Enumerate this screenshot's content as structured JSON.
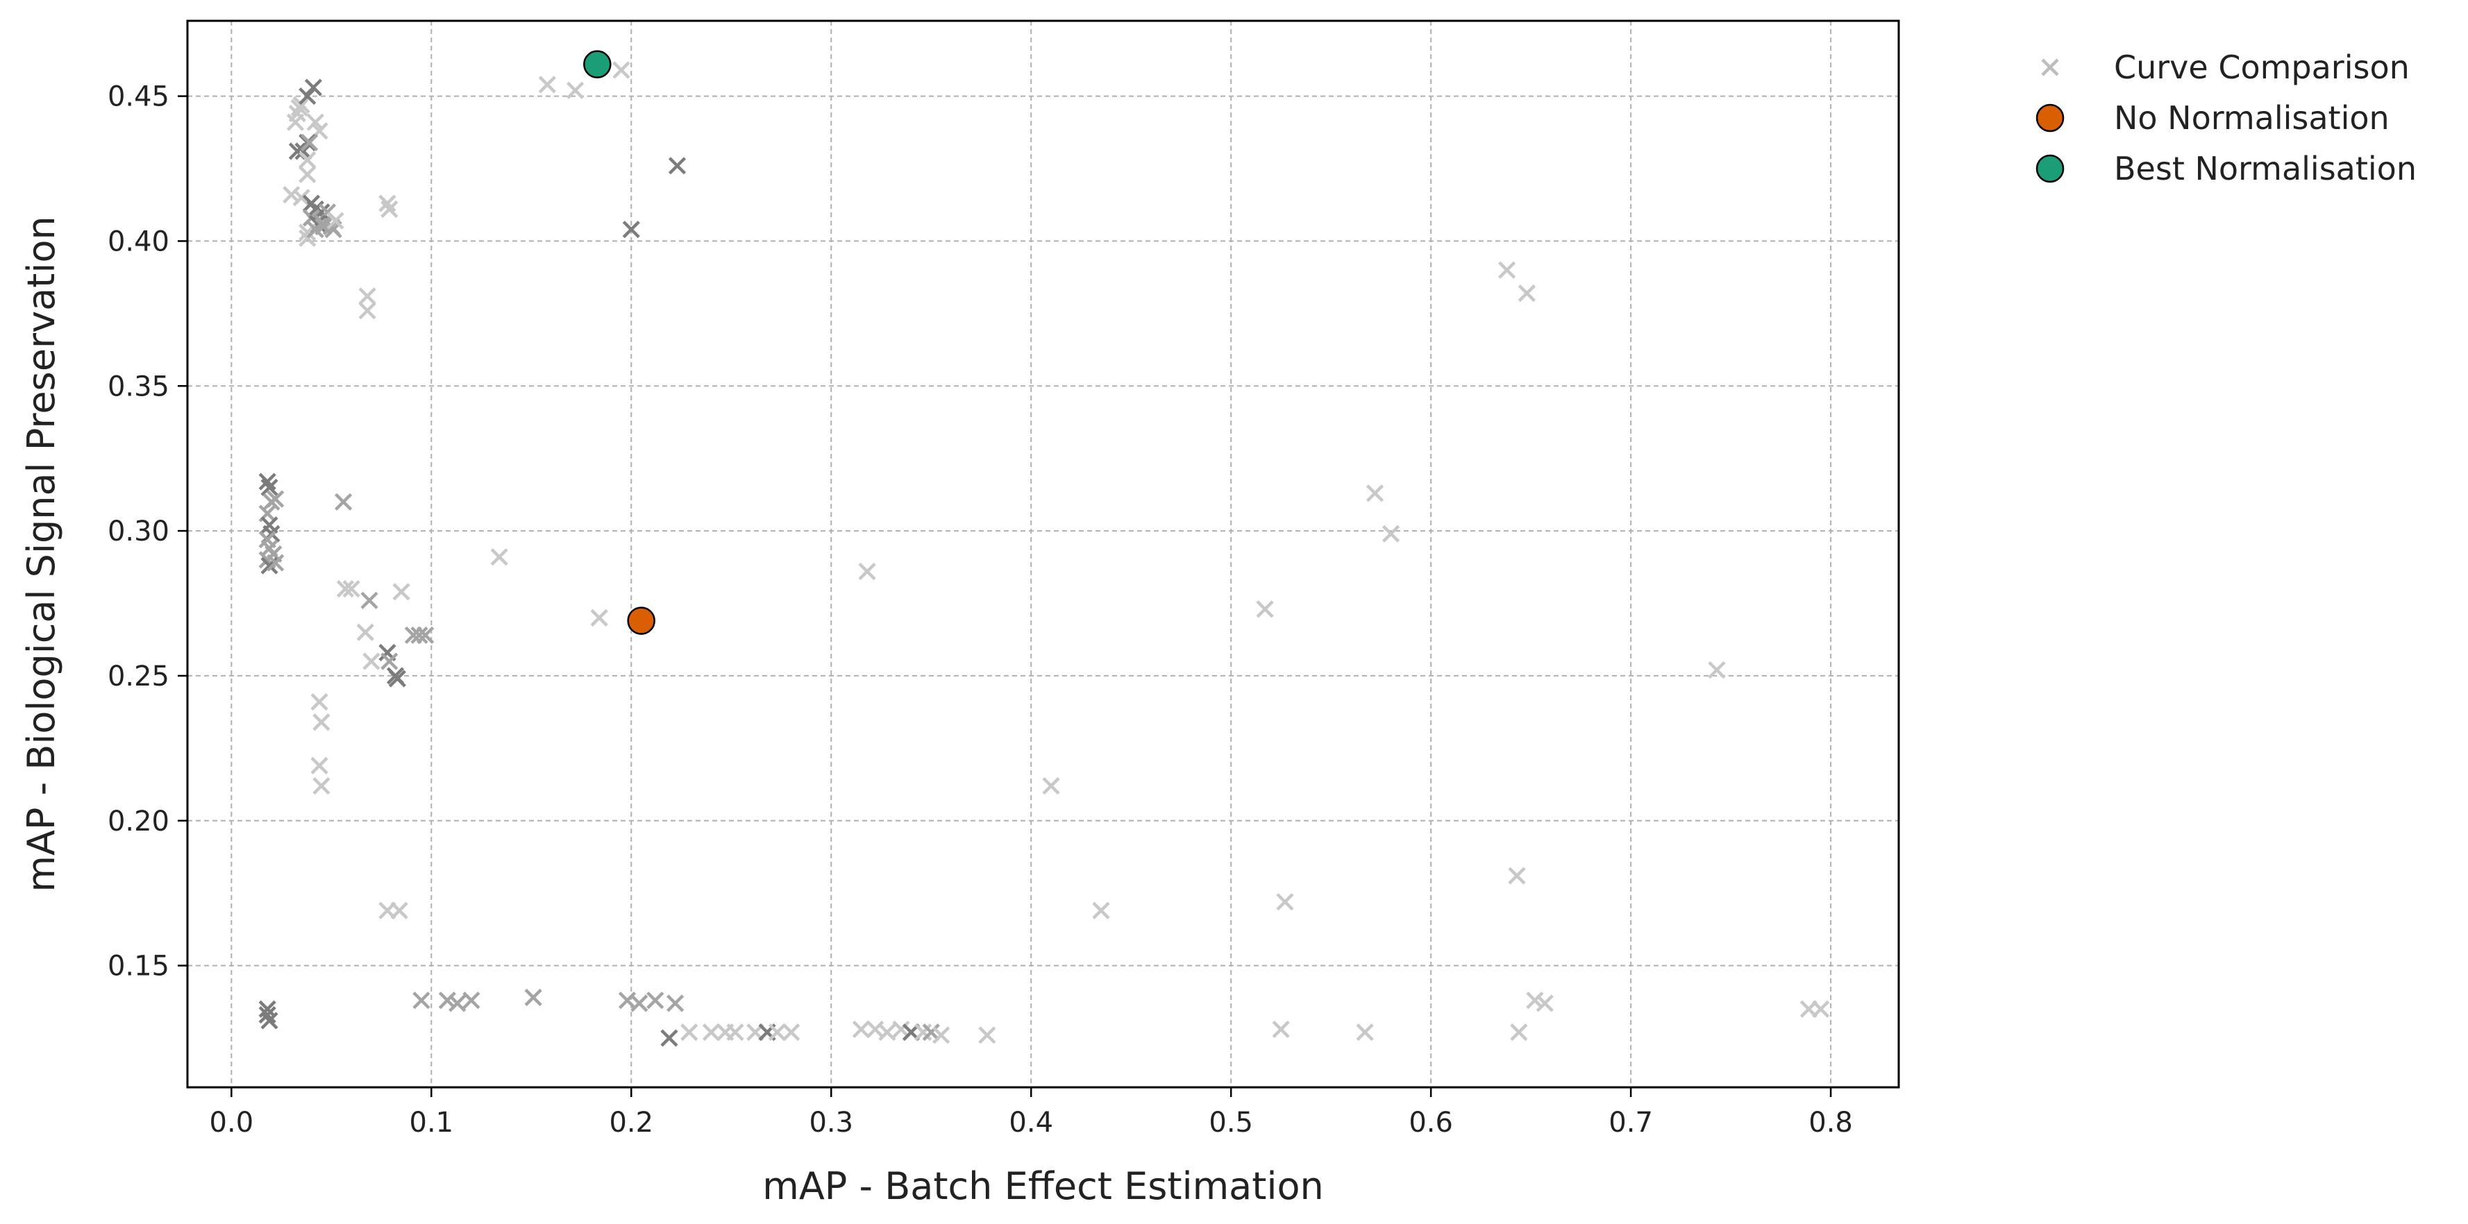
{
  "chart_data": {
    "type": "scatter",
    "xlabel": "mAP - Batch Effect Estimation",
    "ylabel": "mAP - Biological Signal Preservation",
    "xlim": [
      -0.022,
      0.834
    ],
    "ylim": [
      0.108,
      0.476
    ],
    "xticks": [
      0.0,
      0.1,
      0.2,
      0.3,
      0.4,
      0.5,
      0.6,
      0.7,
      0.8
    ],
    "xtick_labels": [
      "0.0",
      "0.1",
      "0.2",
      "0.3",
      "0.4",
      "0.5",
      "0.6",
      "0.7",
      "0.8"
    ],
    "yticks": [
      0.15,
      0.2,
      0.25,
      0.3,
      0.35,
      0.4,
      0.45
    ],
    "ytick_labels": [
      "0.15",
      "0.20",
      "0.25",
      "0.30",
      "0.35",
      "0.40",
      "0.45"
    ],
    "grid": true,
    "legend_position": "outside-top-right",
    "legend": [
      {
        "label": "Curve Comparison",
        "marker": "x",
        "color": "#bdbdbd"
      },
      {
        "label": "No Normalisation",
        "marker": "circle",
        "color": "#d95f02"
      },
      {
        "label": "Best Normalisation",
        "marker": "circle",
        "color": "#1b9e77"
      }
    ],
    "series": [
      {
        "name": "Curve Comparison",
        "marker": "x",
        "color": "#999999",
        "points": [
          [
            0.032,
            0.441
          ],
          [
            0.033,
            0.444
          ],
          [
            0.034,
            0.446
          ],
          [
            0.035,
            0.447
          ],
          [
            0.038,
            0.45
          ],
          [
            0.041,
            0.453
          ],
          [
            0.042,
            0.441
          ],
          [
            0.044,
            0.438
          ],
          [
            0.033,
            0.431
          ],
          [
            0.036,
            0.431
          ],
          [
            0.038,
            0.434
          ],
          [
            0.039,
            0.434
          ],
          [
            0.038,
            0.428
          ],
          [
            0.038,
            0.423
          ],
          [
            0.03,
            0.416
          ],
          [
            0.035,
            0.415
          ],
          [
            0.04,
            0.413
          ],
          [
            0.042,
            0.411
          ],
          [
            0.045,
            0.41
          ],
          [
            0.048,
            0.41
          ],
          [
            0.04,
            0.408
          ],
          [
            0.043,
            0.406
          ],
          [
            0.046,
            0.405
          ],
          [
            0.05,
            0.405
          ],
          [
            0.038,
            0.403
          ],
          [
            0.038,
            0.401
          ],
          [
            0.042,
            0.404
          ],
          [
            0.046,
            0.406
          ],
          [
            0.051,
            0.404
          ],
          [
            0.052,
            0.407
          ],
          [
            0.078,
            0.413
          ],
          [
            0.079,
            0.411
          ],
          [
            0.068,
            0.381
          ],
          [
            0.068,
            0.376
          ],
          [
            0.158,
            0.454
          ],
          [
            0.172,
            0.452
          ],
          [
            0.195,
            0.459
          ],
          [
            0.223,
            0.426
          ],
          [
            0.2,
            0.404
          ],
          [
            0.018,
            0.317
          ],
          [
            0.019,
            0.315
          ],
          [
            0.02,
            0.31
          ],
          [
            0.022,
            0.311
          ],
          [
            0.018,
            0.306
          ],
          [
            0.019,
            0.302
          ],
          [
            0.02,
            0.299
          ],
          [
            0.018,
            0.297
          ],
          [
            0.019,
            0.294
          ],
          [
            0.021,
            0.292
          ],
          [
            0.018,
            0.29
          ],
          [
            0.019,
            0.288
          ],
          [
            0.022,
            0.289
          ],
          [
            0.056,
            0.31
          ],
          [
            0.057,
            0.28
          ],
          [
            0.06,
            0.28
          ],
          [
            0.069,
            0.276
          ],
          [
            0.067,
            0.265
          ],
          [
            0.07,
            0.255
          ],
          [
            0.078,
            0.258
          ],
          [
            0.079,
            0.255
          ],
          [
            0.082,
            0.25
          ],
          [
            0.083,
            0.249
          ],
          [
            0.085,
            0.279
          ],
          [
            0.091,
            0.264
          ],
          [
            0.094,
            0.264
          ],
          [
            0.097,
            0.264
          ],
          [
            0.044,
            0.241
          ],
          [
            0.045,
            0.234
          ],
          [
            0.044,
            0.219
          ],
          [
            0.045,
            0.212
          ],
          [
            0.134,
            0.291
          ],
          [
            0.184,
            0.27
          ],
          [
            0.078,
            0.169
          ],
          [
            0.084,
            0.169
          ],
          [
            0.018,
            0.135
          ],
          [
            0.019,
            0.131
          ],
          [
            0.018,
            0.133
          ],
          [
            0.095,
            0.138
          ],
          [
            0.108,
            0.138
          ],
          [
            0.113,
            0.137
          ],
          [
            0.12,
            0.138
          ],
          [
            0.151,
            0.139
          ],
          [
            0.198,
            0.138
          ],
          [
            0.204,
            0.137
          ],
          [
            0.212,
            0.138
          ],
          [
            0.222,
            0.137
          ],
          [
            0.219,
            0.125
          ],
          [
            0.229,
            0.127
          ],
          [
            0.24,
            0.127
          ],
          [
            0.247,
            0.127
          ],
          [
            0.252,
            0.127
          ],
          [
            0.262,
            0.127
          ],
          [
            0.268,
            0.127
          ],
          [
            0.273,
            0.127
          ],
          [
            0.28,
            0.127
          ],
          [
            0.315,
            0.128
          ],
          [
            0.322,
            0.128
          ],
          [
            0.328,
            0.127
          ],
          [
            0.335,
            0.128
          ],
          [
            0.34,
            0.127
          ],
          [
            0.346,
            0.127
          ],
          [
            0.35,
            0.127
          ],
          [
            0.355,
            0.126
          ],
          [
            0.378,
            0.126
          ],
          [
            0.318,
            0.286
          ],
          [
            0.41,
            0.212
          ],
          [
            0.435,
            0.169
          ],
          [
            0.517,
            0.273
          ],
          [
            0.525,
            0.128
          ],
          [
            0.527,
            0.172
          ],
          [
            0.567,
            0.127
          ],
          [
            0.572,
            0.313
          ],
          [
            0.58,
            0.299
          ],
          [
            0.638,
            0.39
          ],
          [
            0.648,
            0.382
          ],
          [
            0.643,
            0.181
          ],
          [
            0.644,
            0.127
          ],
          [
            0.652,
            0.138
          ],
          [
            0.657,
            0.137
          ],
          [
            0.743,
            0.252
          ],
          [
            0.789,
            0.135
          ],
          [
            0.795,
            0.135
          ]
        ],
        "shade": [
          1,
          1,
          1,
          1,
          3,
          3,
          1,
          1,
          3,
          3,
          3,
          2,
          1,
          1,
          1,
          1,
          3,
          3,
          3,
          2,
          2,
          3,
          2,
          2,
          1,
          1,
          2,
          2,
          2,
          1,
          1,
          1,
          1,
          1,
          1,
          1,
          1,
          3,
          3,
          3,
          3,
          2,
          2,
          2,
          3,
          3,
          2,
          2,
          2,
          2,
          3,
          2,
          2,
          1,
          1,
          2,
          1,
          1,
          3,
          2,
          3,
          3,
          1,
          2,
          2,
          2,
          1,
          1,
          1,
          1,
          1,
          1,
          1,
          1,
          3,
          3,
          3,
          2,
          2,
          2,
          2,
          2,
          2,
          2,
          2,
          2,
          3,
          1,
          1,
          1,
          1,
          1,
          3,
          1,
          1,
          1,
          1,
          1,
          1,
          3,
          1,
          2,
          1,
          1,
          1,
          1,
          1,
          1,
          1,
          1,
          1,
          1,
          1,
          1,
          1,
          1,
          1,
          1,
          1,
          1,
          1,
          1
        ]
      },
      {
        "name": "No Normalisation",
        "marker": "circle",
        "color": "#d95f02",
        "points": [
          [
            0.205,
            0.269
          ]
        ]
      },
      {
        "name": "Best Normalisation",
        "marker": "circle",
        "color": "#1b9e77",
        "points": [
          [
            0.183,
            0.461
          ]
        ]
      }
    ]
  }
}
